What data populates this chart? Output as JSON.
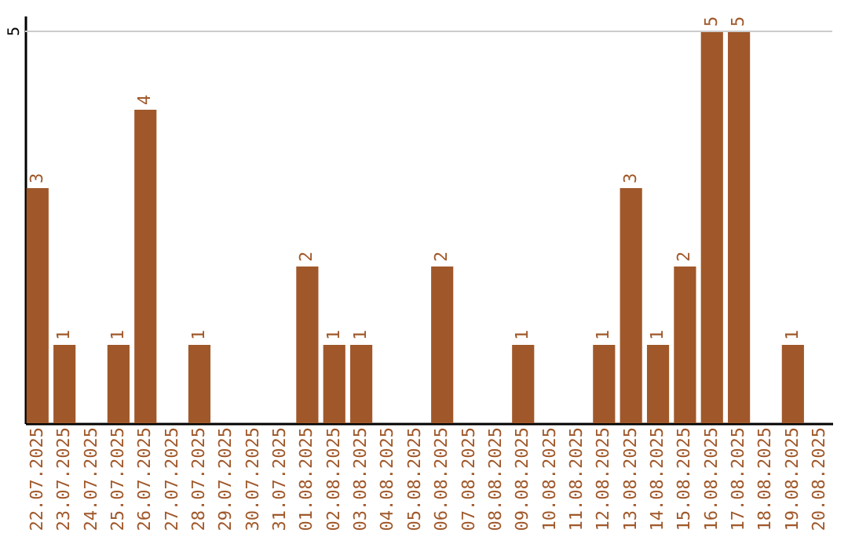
{
  "chart_data": {
    "type": "bar",
    "categories": [
      "22.07.2025",
      "23.07.2025",
      "24.07.2025",
      "25.07.2025",
      "26.07.2025",
      "27.07.2025",
      "28.07.2025",
      "29.07.2025",
      "30.07.2025",
      "31.07.2025",
      "01.08.2025",
      "02.08.2025",
      "03.08.2025",
      "04.08.2025",
      "05.08.2025",
      "06.08.2025",
      "07.08.2025",
      "08.08.2025",
      "09.08.2025",
      "10.08.2025",
      "11.08.2025",
      "12.08.2025",
      "13.08.2025",
      "14.08.2025",
      "15.08.2025",
      "16.08.2025",
      "17.08.2025",
      "18.08.2025",
      "19.08.2025",
      "20.08.2025"
    ],
    "values": [
      3,
      1,
      0,
      1,
      4,
      0,
      1,
      0,
      0,
      0,
      2,
      1,
      1,
      0,
      0,
      2,
      0,
      0,
      1,
      0,
      0,
      1,
      3,
      1,
      2,
      5,
      5,
      0,
      1,
      0
    ],
    "value_labels": [
      "3",
      "1",
      null,
      "1",
      "4",
      null,
      "1",
      null,
      null,
      null,
      "2",
      "1",
      "1",
      null,
      null,
      "2",
      null,
      null,
      "1",
      null,
      null,
      "1",
      "3",
      "1",
      "2",
      "5",
      "5",
      null,
      "1",
      null
    ],
    "color": "#a0582a",
    "ylim": [
      0,
      5.2
    ],
    "ref_lines": [
      {
        "axis": "y",
        "value": 5,
        "label": "5",
        "color": "#cccccc"
      }
    ]
  }
}
